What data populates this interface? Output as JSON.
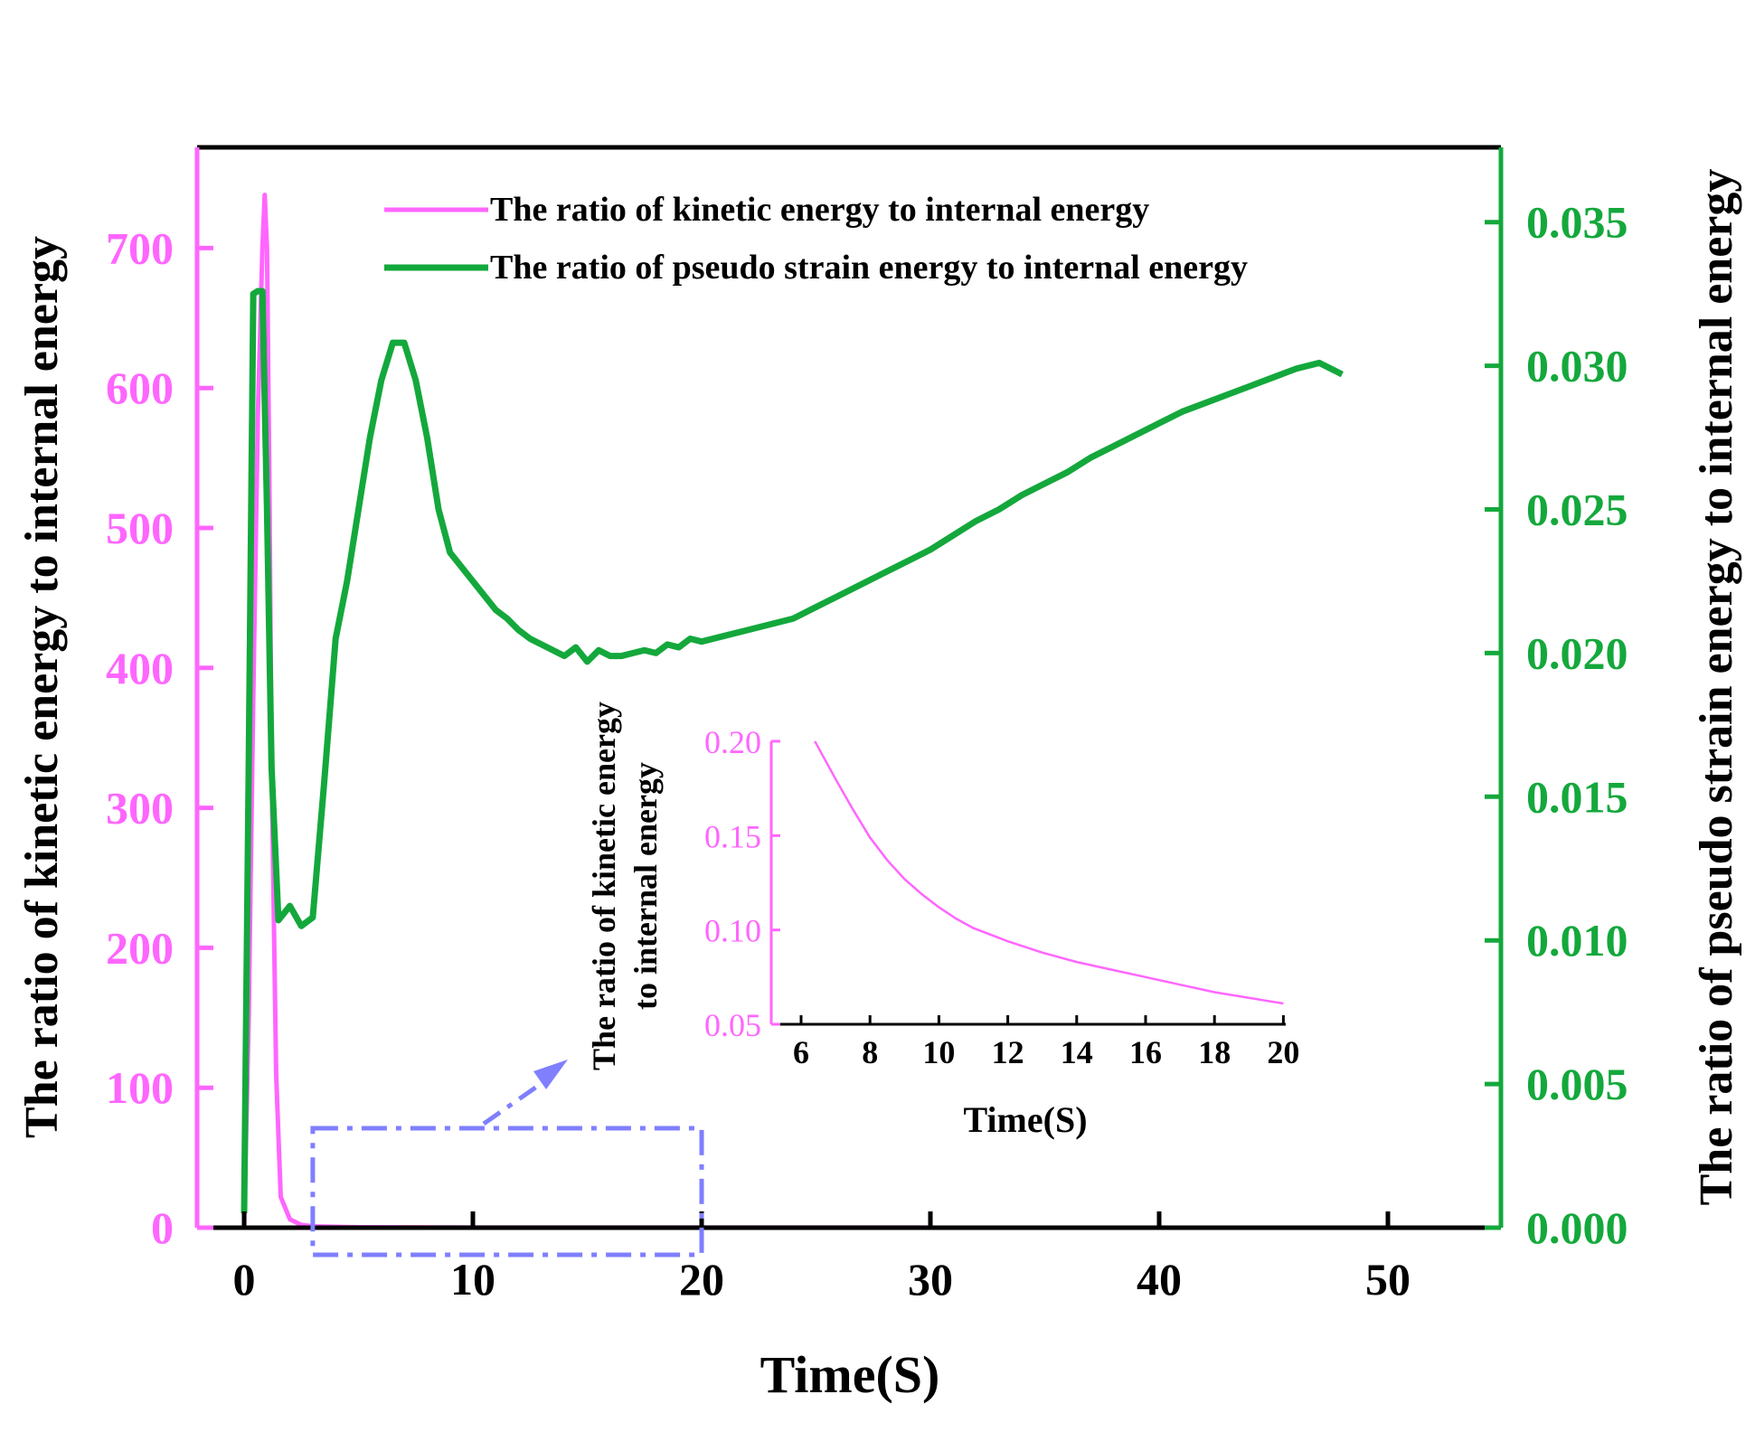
{
  "colors": {
    "kinetic": "#ff66ff",
    "pseudo": "#14a83c",
    "axis": "#000000",
    "zoom_box": "#7f7fff"
  },
  "chart_data": [
    {
      "type": "line",
      "title": "",
      "xlabel": "Time(S)",
      "ylabel_left": "The ratio of kinetic energy to internal energy",
      "ylabel_right": "The ratio of pseudo strain energy to internal energy",
      "xlim": [
        -2,
        54
      ],
      "ylim_left": [
        0,
        770
      ],
      "ylim_right": [
        0,
        0.0378
      ],
      "x_ticks": [
        0,
        10,
        20,
        30,
        40,
        50
      ],
      "y_ticks_left": [
        0,
        100,
        200,
        300,
        400,
        500,
        600,
        700
      ],
      "y_ticks_right": [
        "0.000",
        "0.005",
        "0.010",
        "0.015",
        "0.020",
        "0.025",
        "0.030",
        "0.035"
      ],
      "legend": [
        "The ratio of kinetic energy to internal energy",
        "The ratio of pseudo strain energy to internal energy"
      ],
      "legend_position": "top",
      "series": [
        {
          "name": "The ratio of kinetic energy to internal energy",
          "axis": "left",
          "x": [
            0,
            0.2,
            0.4,
            0.6,
            0.8,
            0.9,
            1.0,
            1.1,
            1.2,
            1.4,
            1.6,
            2.0,
            2.5,
            3,
            5,
            10,
            20,
            30,
            40,
            48
          ],
          "y": [
            0,
            150,
            380,
            580,
            700,
            738,
            700,
            540,
            330,
            110,
            22,
            6,
            2,
            1,
            0.3,
            0.12,
            0.06,
            0.04,
            0.03,
            0.02
          ]
        },
        {
          "name": "The ratio of pseudo strain energy to internal energy",
          "axis": "right",
          "x": [
            0,
            0.2,
            0.4,
            0.6,
            0.8,
            1.0,
            1.2,
            1.5,
            2.0,
            2.5,
            3.0,
            3.5,
            4.0,
            4.5,
            5.0,
            5.5,
            6.0,
            6.5,
            7.0,
            7.5,
            8.0,
            8.5,
            9.0,
            9.5,
            10.0,
            10.5,
            11.0,
            11.5,
            12.0,
            12.5,
            13.0,
            13.5,
            14.0,
            14.5,
            15.0,
            15.5,
            16.0,
            16.5,
            17.0,
            17.5,
            18.0,
            18.5,
            19.0,
            19.5,
            20.0,
            21,
            22,
            23,
            24,
            25,
            26,
            27,
            28,
            29,
            30,
            31,
            32,
            33,
            34,
            35,
            36,
            37,
            38,
            39,
            40,
            41,
            42,
            43,
            44,
            45,
            46,
            47,
            48
          ],
          "y": [
            0.0005,
            0.016,
            0.0325,
            0.0326,
            0.0326,
            0.025,
            0.016,
            0.0107,
            0.0112,
            0.0105,
            0.0108,
            0.0155,
            0.0205,
            0.0225,
            0.025,
            0.0275,
            0.0295,
            0.0308,
            0.0308,
            0.0295,
            0.0275,
            0.025,
            0.0235,
            0.023,
            0.0225,
            0.022,
            0.0215,
            0.0212,
            0.0208,
            0.0205,
            0.0203,
            0.0201,
            0.0199,
            0.0202,
            0.0197,
            0.0201,
            0.0199,
            0.0199,
            0.02,
            0.0201,
            0.02,
            0.0203,
            0.0202,
            0.0205,
            0.0204,
            0.0206,
            0.0208,
            0.021,
            0.0212,
            0.0216,
            0.022,
            0.0224,
            0.0228,
            0.0232,
            0.0236,
            0.0241,
            0.0246,
            0.025,
            0.0255,
            0.0259,
            0.0263,
            0.0268,
            0.0272,
            0.0276,
            0.028,
            0.0284,
            0.0287,
            0.029,
            0.0293,
            0.0296,
            0.0299,
            0.0301,
            0.0297
          ]
        }
      ],
      "zoom_box": {
        "x_range": [
          3,
          20
        ],
        "y_range": [
          0,
          70
        ]
      }
    },
    {
      "type": "line",
      "title": "",
      "xlabel": "Time(S)",
      "ylabel": "The ratio of kinetic energy to internal energy",
      "xlim": [
        5.2,
        20
      ],
      "ylim": [
        0.05,
        0.2
      ],
      "x_ticks": [
        6,
        8,
        10,
        12,
        14,
        16,
        18,
        20
      ],
      "y_ticks": [
        "0.05",
        "0.10",
        "0.15",
        "0.20"
      ],
      "series": [
        {
          "name": "The ratio of kinetic energy to internal energy",
          "x": [
            6.4,
            7,
            7.5,
            8,
            8.5,
            9,
            9.5,
            10,
            10.5,
            11,
            12,
            13,
            14,
            15,
            16,
            17,
            18,
            19,
            20
          ],
          "y": [
            0.2,
            0.18,
            0.164,
            0.149,
            0.137,
            0.127,
            0.119,
            0.112,
            0.106,
            0.101,
            0.094,
            0.088,
            0.083,
            0.079,
            0.075,
            0.071,
            0.067,
            0.064,
            0.061
          ]
        }
      ]
    }
  ]
}
